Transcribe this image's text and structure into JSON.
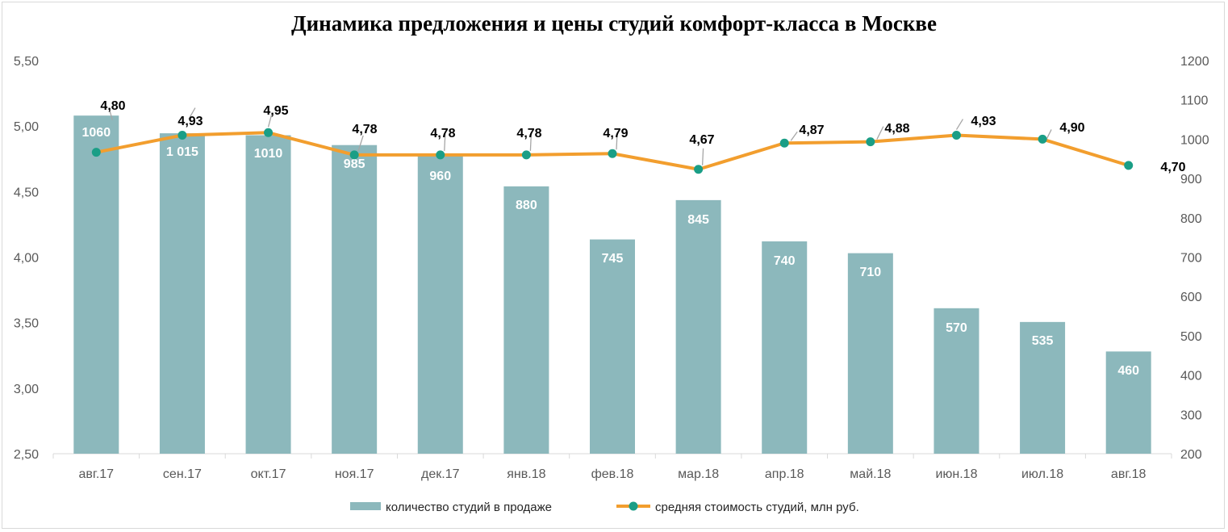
{
  "chart_data": {
    "type": "bar+line",
    "title": "Динамика предложения и цены студий комфорт-класса в Москве",
    "categories": [
      "авг.17",
      "сен.17",
      "окт.17",
      "ноя.17",
      "дек.17",
      "янв.18",
      "фев.18",
      "мар.18",
      "апр.18",
      "май.18",
      "июн.18",
      "июл.18",
      "авг.18"
    ],
    "series": [
      {
        "name": "количество студий в продаже",
        "type": "bar",
        "axis": "right",
        "color": "#8cb8bc",
        "values": [
          1060,
          1015,
          1010,
          985,
          960,
          880,
          745,
          845,
          740,
          710,
          570,
          535,
          460
        ],
        "labels": [
          "1060",
          "1 015",
          "1010",
          "985",
          "960",
          "880",
          "745",
          "845",
          "740",
          "710",
          "570",
          "535",
          "460"
        ]
      },
      {
        "name": "средняя стоимость студий, млн руб.",
        "type": "line",
        "axis": "left",
        "color": "#f29e2e",
        "marker_color": "#1a9e86",
        "values": [
          4.8,
          4.93,
          4.95,
          4.78,
          4.78,
          4.78,
          4.79,
          4.67,
          4.87,
          4.88,
          4.93,
          4.9,
          4.7
        ],
        "labels": [
          "4,80",
          "4,93",
          "4,95",
          "4,78",
          "4,78",
          "4,78",
          "4,79",
          "4,67",
          "4,87",
          "4,88",
          "4,93",
          "4,90",
          "4,70"
        ]
      }
    ],
    "y_left": {
      "range": [
        2.5,
        5.5
      ],
      "ticks": [
        2.5,
        3.0,
        3.5,
        4.0,
        4.5,
        5.0,
        5.5
      ],
      "tick_labels": [
        "2,50",
        "3,00",
        "3,50",
        "4,00",
        "4,50",
        "5,00",
        "5,50"
      ]
    },
    "y_right": {
      "range": [
        200,
        1200
      ],
      "ticks": [
        200,
        300,
        400,
        500,
        600,
        700,
        800,
        900,
        1000,
        1100,
        1200
      ],
      "tick_labels": [
        "200",
        "300",
        "400",
        "500",
        "600",
        "700",
        "800",
        "900",
        "1000",
        "1100",
        "1200"
      ]
    },
    "grid": false,
    "legend_position": "bottom"
  }
}
